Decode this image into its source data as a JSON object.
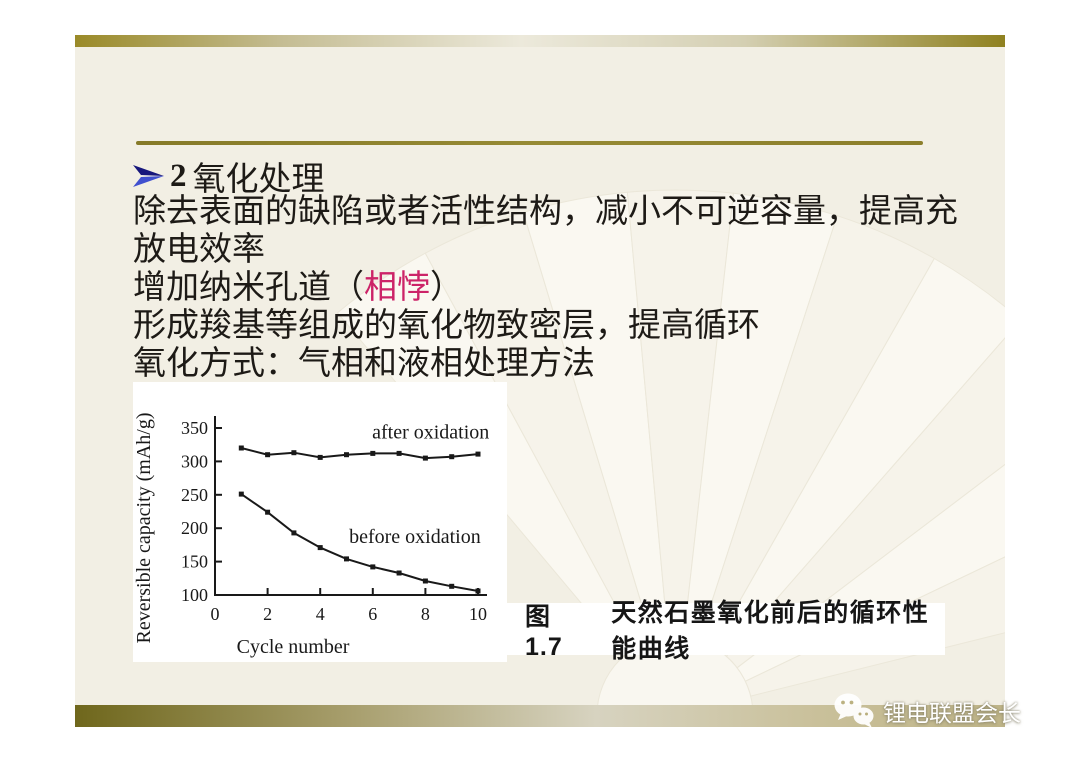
{
  "slide": {
    "title": {
      "number": "2",
      "text": "氧化处理"
    },
    "body_lines": [
      [
        {
          "t": "除去表面的缺陷或者活性结构，减小不可逆容量，提高充"
        }
      ],
      [
        {
          "t": "放电效率"
        }
      ],
      [
        {
          "t": "增加纳米孔道（"
        },
        {
          "t": "相悖",
          "hl": true
        },
        {
          "t": "）"
        }
      ],
      [
        {
          "t": "形成羧基等组成的氧化物致密层，提高循环"
        }
      ],
      [
        {
          "t": "氧化方式：气相和液相处理方法"
        }
      ]
    ]
  },
  "figure": {
    "label": "图 1.7",
    "title": "天然石墨氧化前后的循环性能曲线"
  },
  "chart_data": {
    "type": "line",
    "x": [
      1,
      2,
      3,
      4,
      5,
      6,
      7,
      8,
      9,
      10
    ],
    "series": [
      {
        "name": "after oxidation",
        "values": [
          320,
          310,
          313,
          306,
          310,
          312,
          312,
          305,
          307,
          311
        ],
        "label_at": [
          8.2,
          345
        ]
      },
      {
        "name": "before oxidation",
        "values": [
          251,
          224,
          193,
          171,
          154,
          142,
          133,
          121,
          113,
          106
        ],
        "label_at": [
          7.6,
          188
        ]
      }
    ],
    "xlabel": "Cycle number",
    "ylabel": "Reversible capacity (mAh/g)",
    "xlim": [
      0,
      10
    ],
    "ylim": [
      100,
      350
    ],
    "xticks": [
      0,
      2,
      4,
      6,
      8,
      10
    ],
    "yticks": [
      100,
      150,
      200,
      250,
      300,
      350
    ],
    "grid": false,
    "legend": "inline-labels",
    "line_color": "#191919"
  },
  "watermark": {
    "icon": "wechat-icon",
    "text": "锂电联盟会长"
  },
  "colors": {
    "highlight": "#cc2368",
    "bullet_blue_dark": "#17177c",
    "bullet_blue_light": "#4050cf",
    "gold_rule": "#8c7f2b",
    "slide_bg": "#f2efe4"
  }
}
